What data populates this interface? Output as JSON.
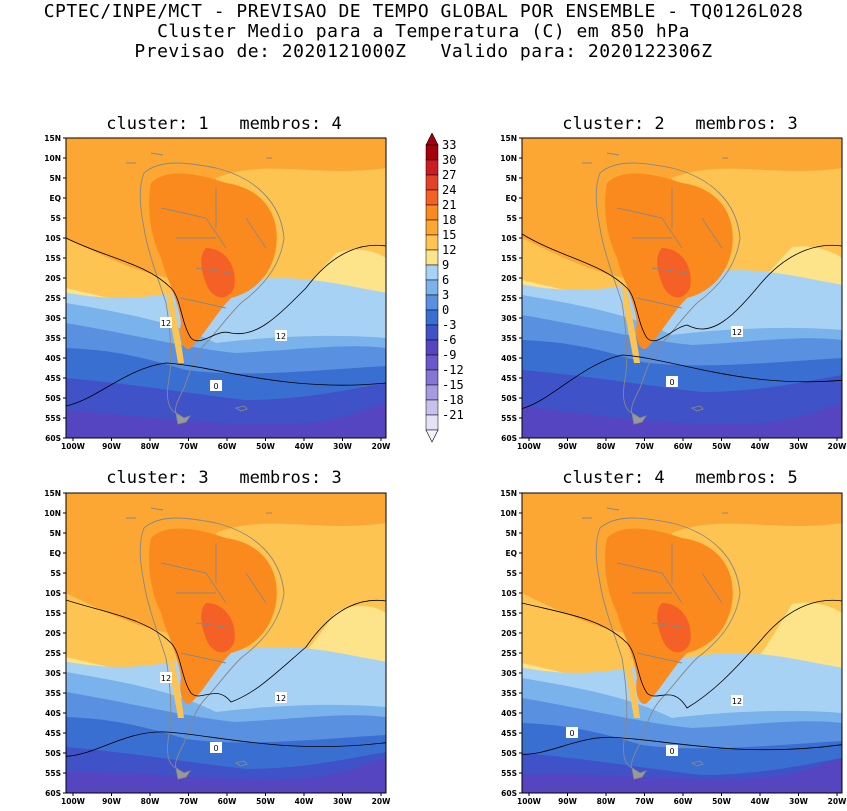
{
  "header": {
    "line1": "CPTEC/INPE/MCT - PREVISAO DE TEMPO GLOBAL POR ENSEMBLE - TQ0126L028",
    "line2": "Cluster Medio para a Temperatura (C) em 850 hPa",
    "line3": "Previsao de: 2020121000Z   Valido para: 2020122306Z"
  },
  "axes": {
    "lat_labels": [
      "15N",
      "10N",
      "5N",
      "EQ",
      "5S",
      "10S",
      "15S",
      "20S",
      "25S",
      "30S",
      "35S",
      "40S",
      "45S",
      "50S",
      "55S",
      "60S"
    ],
    "lon_labels": [
      "100W",
      "90W",
      "80W",
      "70W",
      "60W",
      "50W",
      "40W",
      "30W",
      "20W"
    ]
  },
  "colorbar": {
    "labels": [
      "33",
      "30",
      "27",
      "24",
      "21",
      "18",
      "15",
      "12",
      "9",
      "6",
      "3",
      "0",
      "-3",
      "-6",
      "-9",
      "-12",
      "-15",
      "-18",
      "-21"
    ],
    "colors": [
      "#a5000d",
      "#cc1c22",
      "#e3402c",
      "#f46025",
      "#fb8a1e",
      "#fca733",
      "#fdc452",
      "#fde389",
      "#a8d2f4",
      "#7ab2ec",
      "#5a90e0",
      "#3a6fd2",
      "#3f52c7",
      "#5545c0",
      "#6a57cc",
      "#8576d6",
      "#a89ae2",
      "#c9c0ed",
      "#e6e1f7"
    ]
  },
  "panels": [
    {
      "title": "cluster: 1   membros: 4",
      "label_12a": "12",
      "label_12b": "12",
      "label_0a": "0",
      "label_0b": ""
    },
    {
      "title": "cluster: 2   membros: 3",
      "label_12a": "",
      "label_12b": "12",
      "label_0a": "0",
      "label_0b": ""
    },
    {
      "title": "cluster: 3   membros: 3",
      "label_12a": "12",
      "label_12b": "12",
      "label_0a": "0",
      "label_0b": ""
    },
    {
      "title": "cluster: 4   membros: 5",
      "label_12a": "",
      "label_12b": "12",
      "label_0a": "0",
      "label_0b": "0"
    }
  ]
}
